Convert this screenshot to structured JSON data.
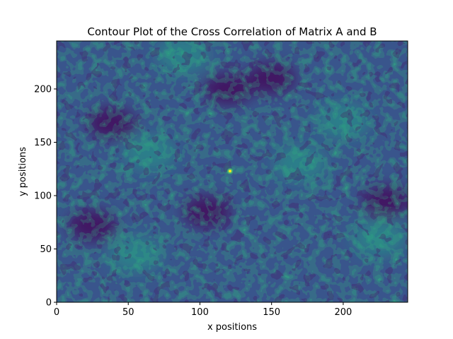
{
  "chart_data": {
    "type": "heatmap",
    "subtype": "filled-contour",
    "title": "Contour Plot of the Cross Correlation of Matrix A and B",
    "xlabel": "x positions",
    "ylabel": "y positions",
    "xlim": [
      0,
      245
    ],
    "ylim": [
      0,
      245
    ],
    "xticks": [
      0,
      50,
      100,
      150,
      200
    ],
    "yticks": [
      0,
      50,
      100,
      150,
      200
    ],
    "colormap": [
      "#440154",
      "#46327e",
      "#365c8d",
      "#277f8e",
      "#1fa187",
      "#4ac16d",
      "#a0da39",
      "#fde725"
    ],
    "grid": false,
    "peak": {
      "x": 121,
      "y": 123
    },
    "low_regions": [
      {
        "x": 38,
        "y": 168
      },
      {
        "x": 25,
        "y": 72
      },
      {
        "x": 105,
        "y": 85
      },
      {
        "x": 150,
        "y": 210
      },
      {
        "x": 120,
        "y": 200
      },
      {
        "x": 230,
        "y": 95
      }
    ],
    "high_regions": [
      {
        "x": 88,
        "y": 232
      },
      {
        "x": 65,
        "y": 140
      },
      {
        "x": 170,
        "y": 130
      },
      {
        "x": 200,
        "y": 170
      },
      {
        "x": 55,
        "y": 45
      },
      {
        "x": 225,
        "y": 60
      }
    ]
  }
}
